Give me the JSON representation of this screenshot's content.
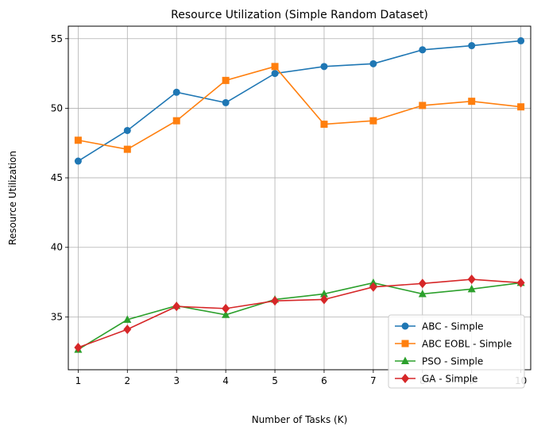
{
  "chart_data": {
    "type": "line",
    "title": "Resource Utilization (Simple Random Dataset)",
    "xlabel": "Number of Tasks (K)",
    "ylabel": "Resource Utilization",
    "x": [
      1,
      2,
      3,
      4,
      5,
      6,
      7,
      8,
      9,
      10
    ],
    "xlim": [
      0.8,
      10.2
    ],
    "ylim": [
      31.2,
      55.9
    ],
    "yticks": [
      35,
      40,
      45,
      50,
      55
    ],
    "grid": true,
    "legend_position": "lower-right",
    "series": [
      {
        "name": "ABC - Simple",
        "color": "#1f77b4",
        "marker": "circle",
        "values": [
          46.2,
          48.4,
          51.15,
          50.4,
          52.5,
          53.0,
          53.2,
          54.2,
          54.5,
          54.85
        ]
      },
      {
        "name": "ABC EOBL - Simple",
        "color": "#ff7f0e",
        "marker": "square",
        "values": [
          47.7,
          47.05,
          49.1,
          52.0,
          53.0,
          48.85,
          49.1,
          50.2,
          50.5,
          50.1
        ]
      },
      {
        "name": "PSO - Simple",
        "color": "#2ca02c",
        "marker": "triangle",
        "values": [
          32.65,
          34.8,
          35.8,
          35.15,
          36.25,
          36.65,
          37.45,
          36.65,
          37.0,
          37.45
        ]
      },
      {
        "name": "GA - Simple",
        "color": "#d62728",
        "marker": "diamond",
        "values": [
          32.8,
          34.1,
          35.75,
          35.6,
          36.15,
          36.25,
          37.15,
          37.4,
          37.7,
          37.45
        ]
      }
    ]
  }
}
